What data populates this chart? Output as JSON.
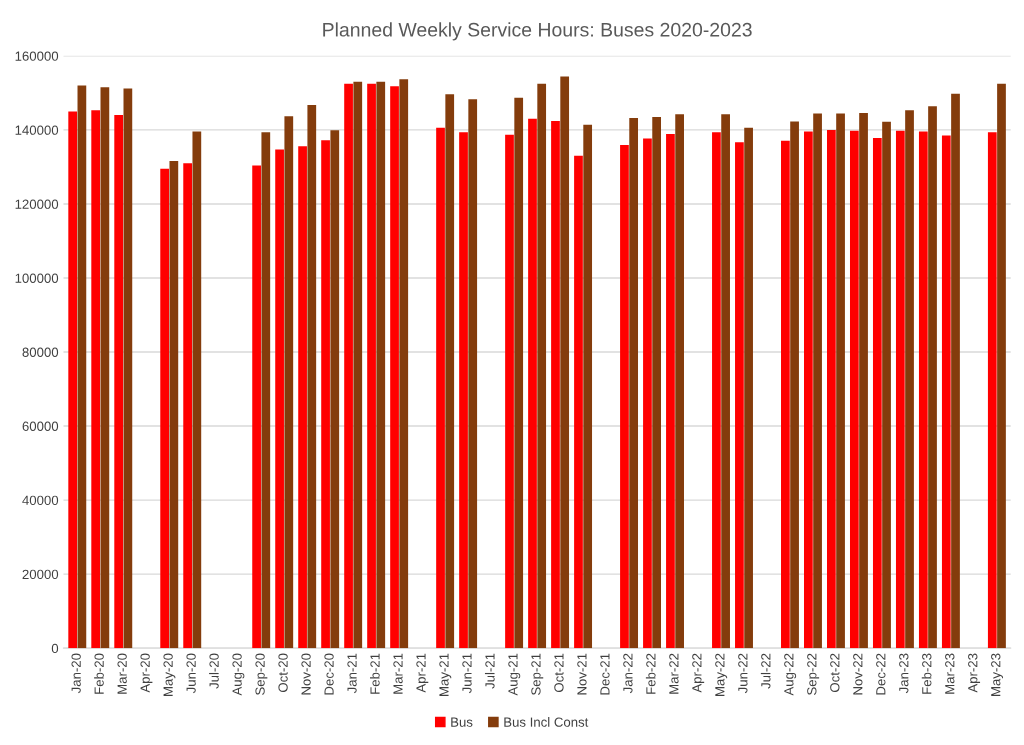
{
  "chart_data": {
    "type": "bar",
    "title": "Planned Weekly Service Hours: Buses 2020-2023",
    "categories": [
      "Jan-20",
      "Feb-20",
      "Mar-20",
      "Apr-20",
      "May-20",
      "Jun-20",
      "Jul-20",
      "Aug-20",
      "Sep-20",
      "Oct-20",
      "Nov-20",
      "Dec-20",
      "Jan-21",
      "Feb-21",
      "Mar-21",
      "Apr-21",
      "May-21",
      "Jun-21",
      "Jul-21",
      "Aug-21",
      "Sep-21",
      "Oct-21",
      "Nov-21",
      "Dec-21",
      "Jan-22",
      "Feb-22",
      "Mar-22",
      "Apr-22",
      "May-22",
      "Jun-22",
      "Jul-22",
      "Aug-22",
      "Sep-22",
      "Oct-22",
      "Nov-22",
      "Dec-22",
      "Jan-23",
      "Feb-23",
      "Mar-23",
      "Apr-23",
      "May-23"
    ],
    "series": [
      {
        "name": "Bus",
        "color": "#ff0000",
        "values": [
          145000,
          145300,
          144000,
          null,
          129500,
          131000,
          null,
          null,
          130400,
          134700,
          135600,
          137200,
          152500,
          152500,
          151800,
          null,
          140600,
          139400,
          null,
          138700,
          143000,
          142400,
          133000,
          null,
          135900,
          137700,
          138900,
          null,
          139400,
          136700,
          null,
          137100,
          139600,
          140000,
          139800,
          137800,
          139800,
          139600,
          138500,
          null,
          139400
        ]
      },
      {
        "name": "Bus Incl Const",
        "color": "#843c0c",
        "values": [
          152000,
          151500,
          151200,
          null,
          131600,
          139600,
          null,
          null,
          139400,
          143700,
          146700,
          139900,
          153000,
          153000,
          153700,
          null,
          149600,
          148300,
          null,
          148700,
          152500,
          154400,
          141400,
          null,
          143200,
          143500,
          144200,
          null,
          144200,
          140600,
          null,
          142300,
          144400,
          144400,
          144600,
          142200,
          145300,
          146400,
          149800,
          null,
          152500
        ]
      }
    ],
    "ylim": [
      0,
      160000
    ],
    "yticks": [
      0,
      20000,
      40000,
      60000,
      80000,
      100000,
      120000,
      140000,
      160000
    ],
    "grid": "y",
    "legend": "bottom"
  }
}
